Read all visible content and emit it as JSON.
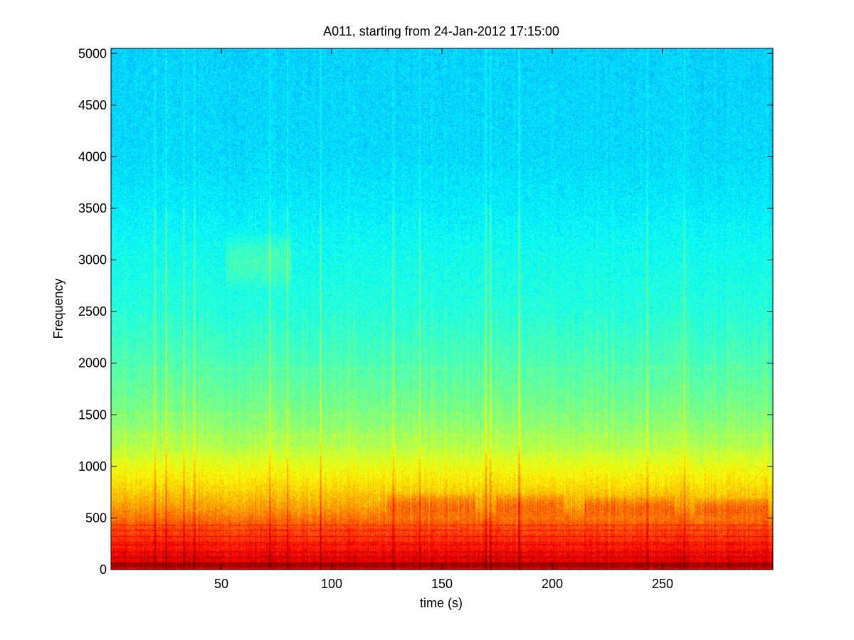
{
  "chart_data": {
    "type": "heatmap",
    "title": "A011, starting from 24-Jan-2012 17:15:00",
    "xlabel": "time (s)",
    "ylabel": "Frequency",
    "xlim": [
      0,
      300
    ],
    "ylim": [
      0,
      5050
    ],
    "x_ticks": [
      50,
      100,
      150,
      200,
      250
    ],
    "y_ticks": [
      0,
      500,
      1000,
      1500,
      2000,
      2500,
      3000,
      3500,
      4000,
      4500,
      5000
    ],
    "colormap": "jet",
    "grid": false,
    "legend": "none",
    "intensity_profile": {
      "frequency": [
        0,
        50,
        80,
        150,
        250,
        400,
        600,
        800,
        1000,
        1200,
        1500,
        2000,
        2500,
        3000,
        3500,
        4000,
        5050
      ],
      "level": [
        0.9,
        0.97,
        0.9,
        0.88,
        0.84,
        0.8,
        0.72,
        0.66,
        0.61,
        0.55,
        0.5,
        0.45,
        0.41,
        0.39,
        0.36,
        0.34,
        0.33
      ]
    },
    "horizontal_bands_hz": [
      30,
      60,
      120,
      170,
      240,
      260,
      320,
      380,
      430,
      1300,
      1500,
      1950
    ],
    "vertical_events_s": [
      20,
      25,
      33,
      38,
      72,
      80,
      95,
      128,
      140,
      170,
      172,
      185,
      243,
      260
    ],
    "broadband_bursts": [
      {
        "t": [
          52,
          82
        ],
        "f": [
          2700,
          3300
        ]
      },
      {
        "t": [
          125,
          165
        ],
        "f": [
          500,
          750
        ]
      },
      {
        "t": [
          175,
          205
        ],
        "f": [
          500,
          750
        ]
      },
      {
        "t": [
          215,
          255
        ],
        "f": [
          500,
          720
        ]
      },
      {
        "t": [
          265,
          298
        ],
        "f": [
          500,
          700
        ]
      }
    ]
  }
}
